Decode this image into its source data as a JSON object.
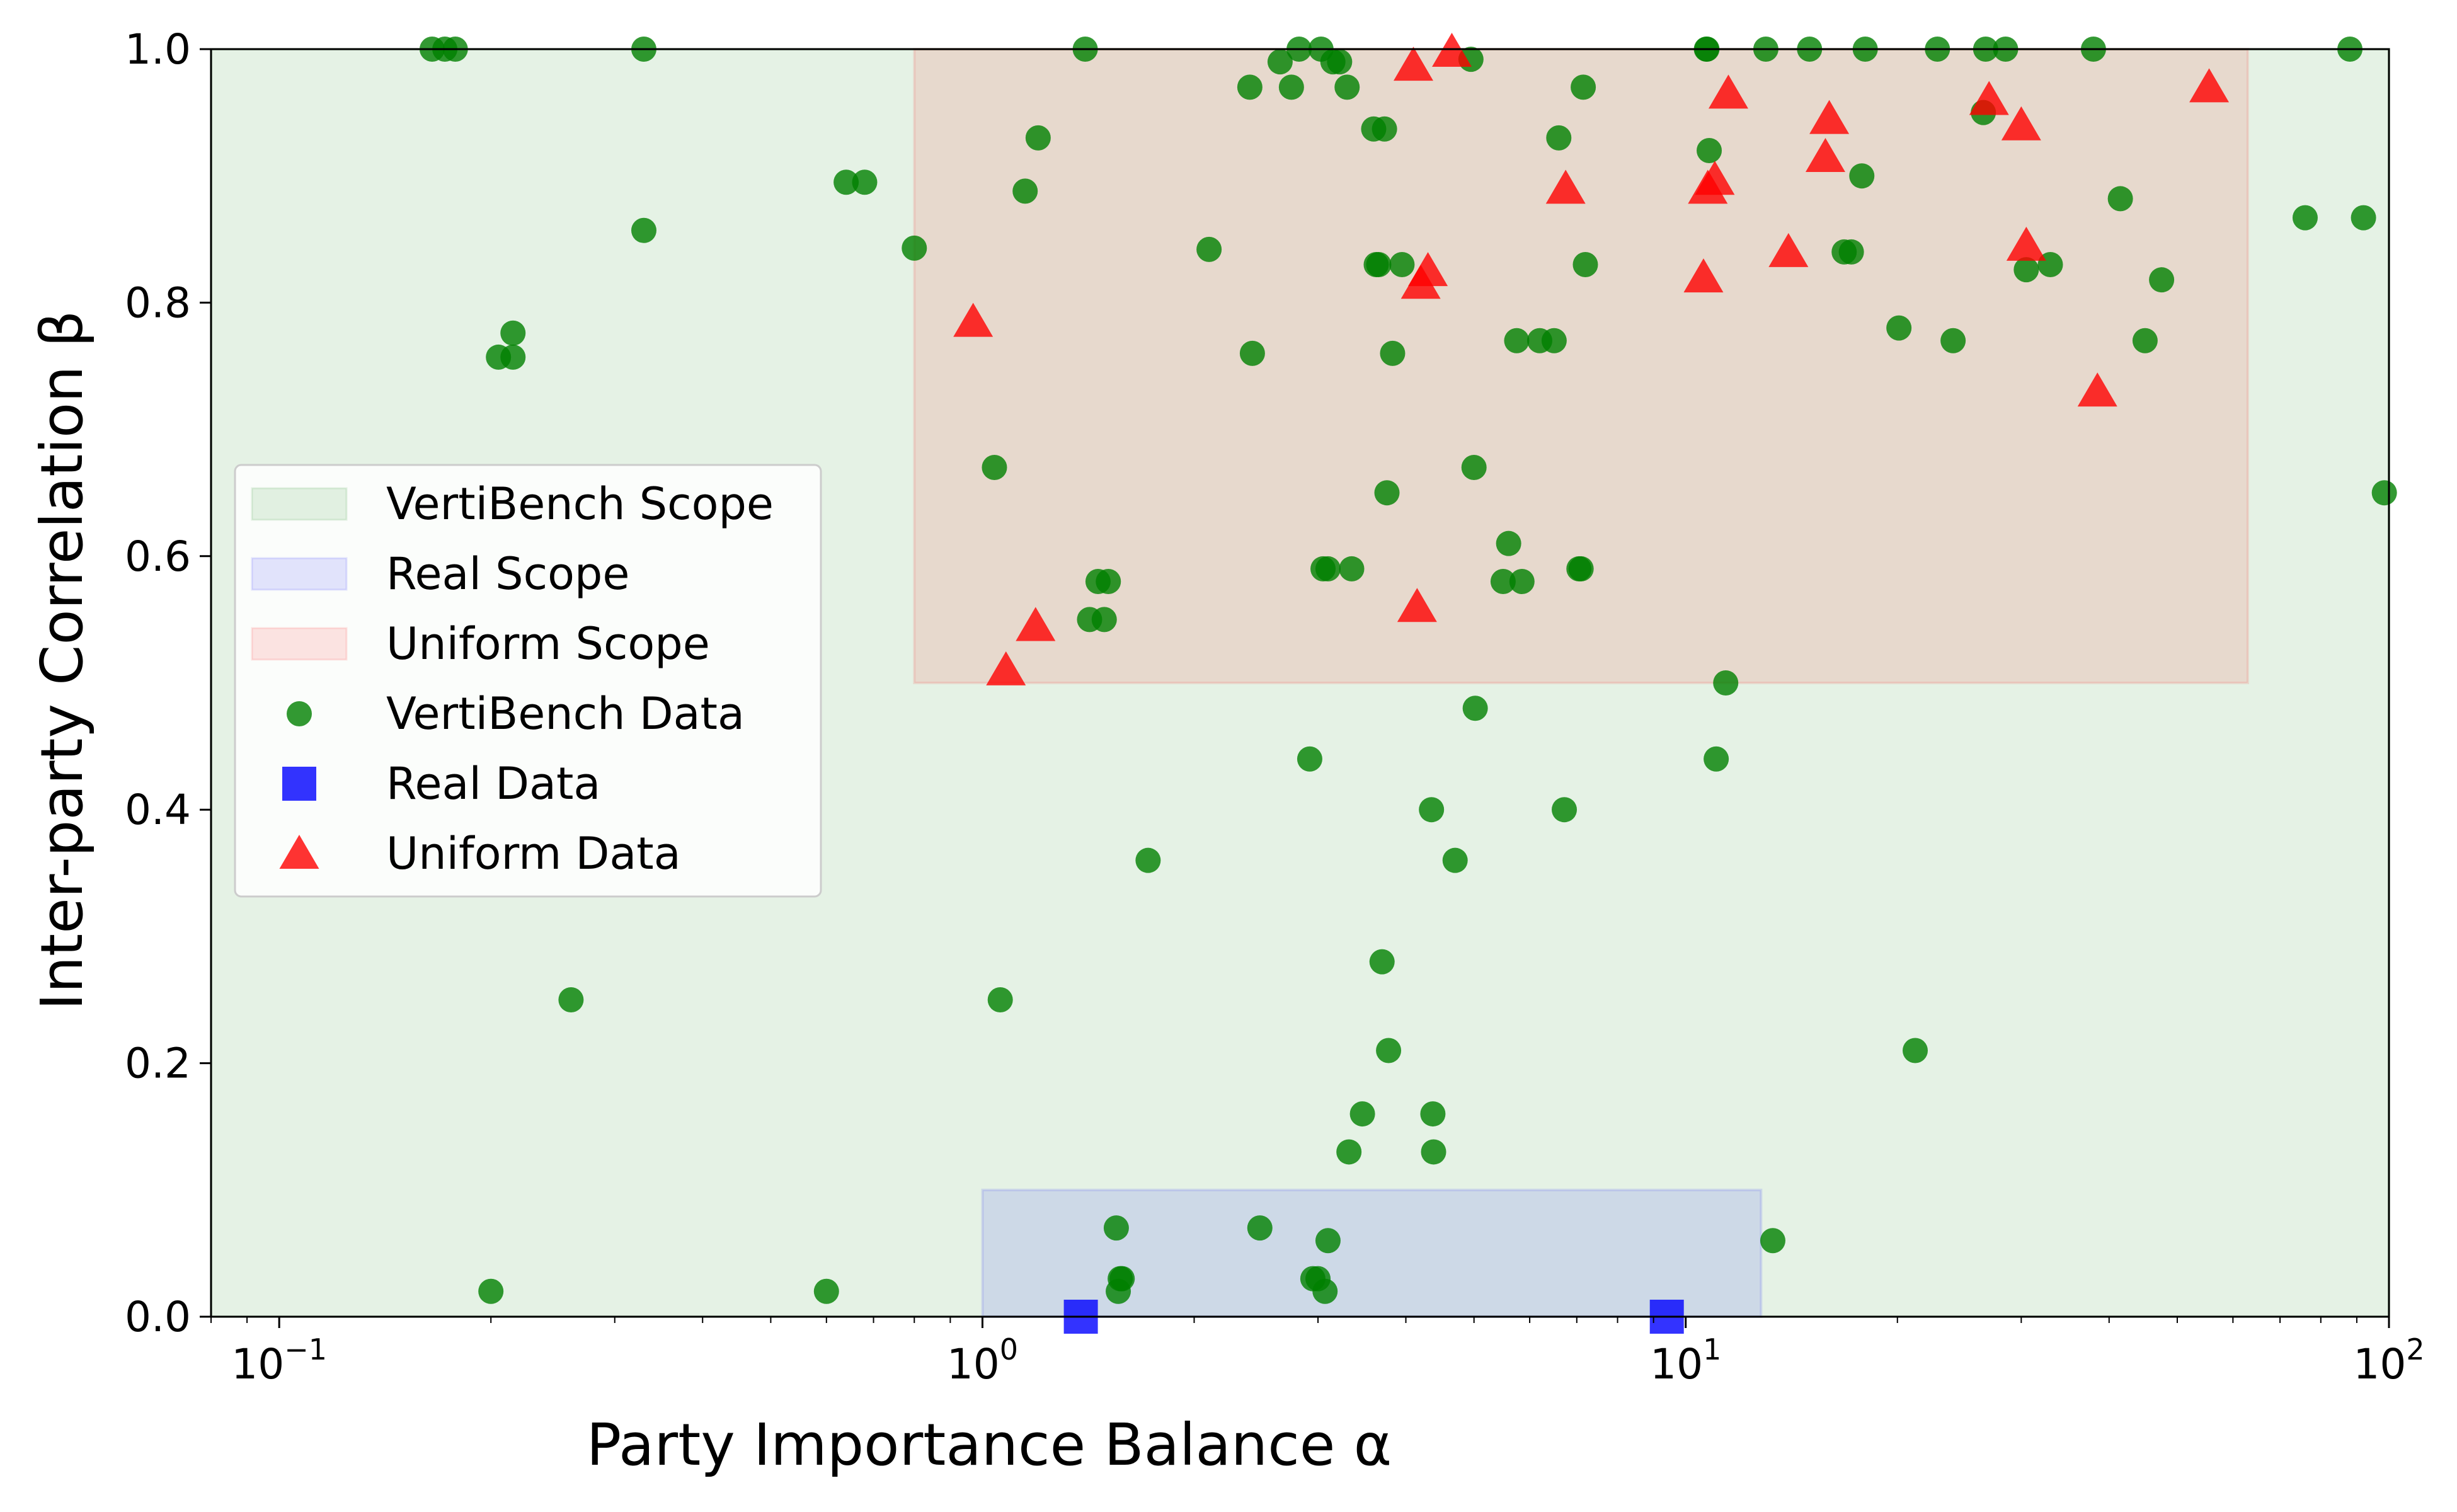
{
  "chart_data": {
    "type": "scatter",
    "xlabel": "Party Importance Balance α",
    "ylabel": "Inter-party Correlation β",
    "xscale": "log",
    "xlim": [
      0.08,
      100
    ],
    "ylim": [
      0.0,
      1.0
    ],
    "x_ticks": [
      {
        "value": 0.1,
        "label": "10",
        "exp": "−1"
      },
      {
        "value": 1,
        "label": "10",
        "exp": "0"
      },
      {
        "value": 10,
        "label": "10",
        "exp": "1"
      },
      {
        "value": 100,
        "label": "10",
        "exp": "2"
      }
    ],
    "y_ticks": [
      {
        "value": 0.0,
        "label": "0.0"
      },
      {
        "value": 0.2,
        "label": "0.2"
      },
      {
        "value": 0.4,
        "label": "0.4"
      },
      {
        "value": 0.6,
        "label": "0.6"
      },
      {
        "value": 0.8,
        "label": "0.8"
      },
      {
        "value": 1.0,
        "label": "1.0"
      }
    ],
    "grid": false,
    "legend_position": "center-left",
    "regions": [
      {
        "name": "VertiBench Scope",
        "x": [
          0.08,
          100
        ],
        "y": [
          0.0,
          1.0
        ],
        "color": "#008000",
        "opacity": 0.1
      },
      {
        "name": "Real Scope",
        "x": [
          1.0,
          12.8
        ],
        "y": [
          0.0,
          0.1
        ],
        "color": "#0000ff",
        "opacity": 0.1
      },
      {
        "name": "Uniform Scope",
        "x": [
          0.8,
          63
        ],
        "y": [
          0.5,
          1.0
        ],
        "color": "#ff0000",
        "opacity": 0.1
      }
    ],
    "series": [
      {
        "name": "VertiBench Data",
        "marker": "circle",
        "color": "#008000",
        "points": [
          [
            0.165,
            1.0
          ],
          [
            0.172,
            1.0
          ],
          [
            0.178,
            1.0
          ],
          [
            0.33,
            1.0
          ],
          [
            0.2,
            0.02
          ],
          [
            0.205,
            0.757
          ],
          [
            0.215,
            0.757
          ],
          [
            0.215,
            0.776
          ],
          [
            0.26,
            0.25
          ],
          [
            0.33,
            0.857
          ],
          [
            0.6,
            0.02
          ],
          [
            0.64,
            0.895
          ],
          [
            0.68,
            0.895
          ],
          [
            0.8,
            0.843
          ],
          [
            1.04,
            0.67
          ],
          [
            1.06,
            0.25
          ],
          [
            1.15,
            0.888
          ],
          [
            1.2,
            0.93
          ],
          [
            1.4,
            1.0
          ],
          [
            1.42,
            0.55
          ],
          [
            1.46,
            0.58
          ],
          [
            1.49,
            0.55
          ],
          [
            1.51,
            0.58
          ],
          [
            1.55,
            0.07
          ],
          [
            1.56,
            0.02
          ],
          [
            1.57,
            0.03
          ],
          [
            1.58,
            0.03
          ],
          [
            1.72,
            0.36
          ],
          [
            2.1,
            0.842
          ],
          [
            2.4,
            0.97
          ],
          [
            2.42,
            0.76
          ],
          [
            2.48,
            0.07
          ],
          [
            2.65,
            0.99
          ],
          [
            2.75,
            0.97
          ],
          [
            2.82,
            1.0
          ],
          [
            2.92,
            0.44
          ],
          [
            2.95,
            0.03
          ],
          [
            3.0,
            0.03
          ],
          [
            3.03,
            1.0
          ],
          [
            3.05,
            0.59
          ],
          [
            3.07,
            0.02
          ],
          [
            3.1,
            0.06
          ],
          [
            3.1,
            0.59
          ],
          [
            3.15,
            0.99
          ],
          [
            3.22,
            0.99
          ],
          [
            3.3,
            0.97
          ],
          [
            3.32,
            0.13
          ],
          [
            3.35,
            0.59
          ],
          [
            3.47,
            0.16
          ],
          [
            3.6,
            0.937
          ],
          [
            3.63,
            0.83
          ],
          [
            3.66,
            0.83
          ],
          [
            3.7,
            0.28
          ],
          [
            3.73,
            0.937
          ],
          [
            3.76,
            0.65
          ],
          [
            3.78,
            0.21
          ],
          [
            3.83,
            0.76
          ],
          [
            3.95,
            0.83
          ],
          [
            4.35,
            0.4
          ],
          [
            4.37,
            0.16
          ],
          [
            4.38,
            0.13
          ],
          [
            4.7,
            0.36
          ],
          [
            4.95,
            0.992
          ],
          [
            5.0,
            0.67
          ],
          [
            5.02,
            0.48
          ],
          [
            5.5,
            0.58
          ],
          [
            5.6,
            0.61
          ],
          [
            5.75,
            0.77
          ],
          [
            5.85,
            0.58
          ],
          [
            6.2,
            0.77
          ],
          [
            6.5,
            0.77
          ],
          [
            6.6,
            0.93
          ],
          [
            6.72,
            0.4
          ],
          [
            7.05,
            0.59
          ],
          [
            7.1,
            0.59
          ],
          [
            7.15,
            0.97
          ],
          [
            7.2,
            0.83
          ],
          [
            10.7,
            1.0
          ],
          [
            10.72,
            1.0
          ],
          [
            10.8,
            0.92
          ],
          [
            11.05,
            0.44
          ],
          [
            11.4,
            0.5
          ],
          [
            13.0,
            1.0
          ],
          [
            13.3,
            0.06
          ],
          [
            15.0,
            1.0
          ],
          [
            16.8,
            0.84
          ],
          [
            17.2,
            0.84
          ],
          [
            17.8,
            0.9
          ],
          [
            18.0,
            1.0
          ],
          [
            20.1,
            0.78
          ],
          [
            21.2,
            0.21
          ],
          [
            22.8,
            1.0
          ],
          [
            24.0,
            0.77
          ],
          [
            26.5,
            0.95
          ],
          [
            26.7,
            1.0
          ],
          [
            28.5,
            1.0
          ],
          [
            30.5,
            0.826
          ],
          [
            33.0,
            0.83
          ],
          [
            38.0,
            1.0
          ],
          [
            41.5,
            0.882
          ],
          [
            45.0,
            0.77
          ],
          [
            47.5,
            0.818
          ],
          [
            76.0,
            0.867
          ],
          [
            88.0,
            1.0
          ],
          [
            92.0,
            0.867
          ],
          [
            98.5,
            0.65
          ]
        ]
      },
      {
        "name": "Real Data",
        "marker": "square",
        "color": "#0000ff",
        "points": [
          [
            1.38,
            0.0
          ],
          [
            9.4,
            0.0
          ]
        ]
      },
      {
        "name": "Uniform Data",
        "marker": "triangle",
        "color": "#ff0000",
        "points": [
          [
            0.97,
            0.785
          ],
          [
            1.08,
            0.51
          ],
          [
            1.19,
            0.545
          ],
          [
            4.1,
            0.987
          ],
          [
            4.15,
            0.56
          ],
          [
            4.2,
            0.815
          ],
          [
            4.3,
            0.825
          ],
          [
            4.65,
            0.998
          ],
          [
            6.75,
            0.89
          ],
          [
            10.6,
            0.82
          ],
          [
            10.75,
            0.89
          ],
          [
            11.0,
            0.897
          ],
          [
            11.5,
            0.965
          ],
          [
            14.0,
            0.84
          ],
          [
            15.8,
            0.915
          ],
          [
            16.0,
            0.945
          ],
          [
            27.0,
            0.96
          ],
          [
            30.0,
            0.94
          ],
          [
            30.5,
            0.845
          ],
          [
            38.5,
            0.73
          ],
          [
            55.5,
            0.97
          ]
        ]
      }
    ]
  }
}
